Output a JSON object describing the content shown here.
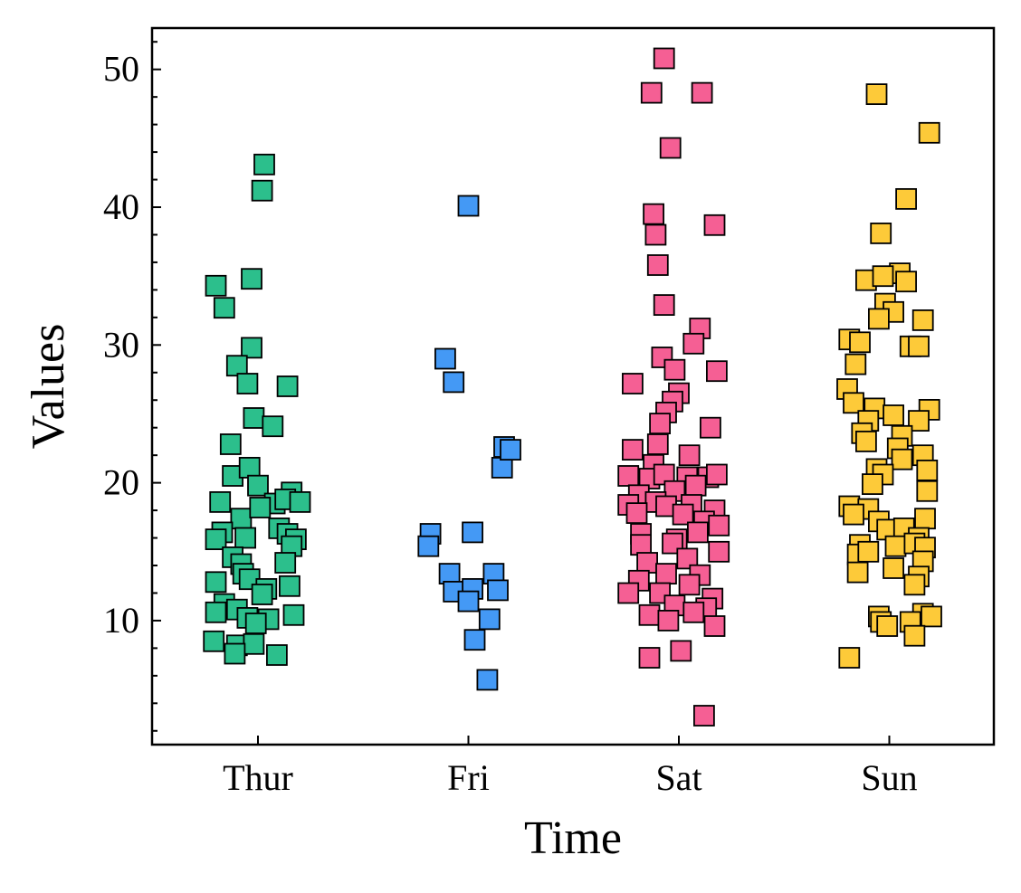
{
  "chart_data": {
    "type": "scatter",
    "xlabel": "Time",
    "ylabel": "Values",
    "categories": [
      "Thur",
      "Fri",
      "Sat",
      "Sun"
    ],
    "ylim": [
      1,
      53
    ],
    "yticks": [
      10,
      20,
      30,
      40,
      50
    ],
    "grid": false,
    "legend": "none",
    "marker": "square",
    "series": [
      {
        "category": "Thur",
        "color": "#2cbf8c",
        "points": [
          {
            "j": 0.03,
            "v": 43.1
          },
          {
            "j": 0.02,
            "v": 41.2
          },
          {
            "j": -0.2,
            "v": 34.3
          },
          {
            "j": -0.03,
            "v": 34.8
          },
          {
            "j": -0.16,
            "v": 32.7
          },
          {
            "j": -0.03,
            "v": 29.8
          },
          {
            "j": -0.1,
            "v": 28.5
          },
          {
            "j": -0.05,
            "v": 27.2
          },
          {
            "j": 0.14,
            "v": 27.0
          },
          {
            "j": -0.02,
            "v": 24.7
          },
          {
            "j": 0.07,
            "v": 24.1
          },
          {
            "j": -0.13,
            "v": 22.8
          },
          {
            "j": -0.12,
            "v": 20.5
          },
          {
            "j": -0.04,
            "v": 21.1
          },
          {
            "j": 0.0,
            "v": 19.8
          },
          {
            "j": 0.16,
            "v": 19.3
          },
          {
            "j": -0.18,
            "v": 18.6
          },
          {
            "j": 0.08,
            "v": 18.5
          },
          {
            "j": 0.13,
            "v": 18.8
          },
          {
            "j": 0.2,
            "v": 18.6
          },
          {
            "j": -0.08,
            "v": 17.4
          },
          {
            "j": 0.01,
            "v": 18.2
          },
          {
            "j": -0.17,
            "v": 16.4
          },
          {
            "j": 0.1,
            "v": 16.7
          },
          {
            "j": 0.14,
            "v": 16.3
          },
          {
            "j": 0.18,
            "v": 15.9
          },
          {
            "j": -0.2,
            "v": 15.9
          },
          {
            "j": -0.06,
            "v": 16.0
          },
          {
            "j": 0.16,
            "v": 15.4
          },
          {
            "j": -0.12,
            "v": 14.6
          },
          {
            "j": -0.08,
            "v": 14.1
          },
          {
            "j": 0.13,
            "v": 14.2
          },
          {
            "j": -0.2,
            "v": 12.8
          },
          {
            "j": -0.07,
            "v": 13.4
          },
          {
            "j": -0.04,
            "v": 13.0
          },
          {
            "j": 0.04,
            "v": 12.3
          },
          {
            "j": 0.15,
            "v": 12.5
          },
          {
            "j": -0.16,
            "v": 11.2
          },
          {
            "j": 0.02,
            "v": 11.9
          },
          {
            "j": -0.1,
            "v": 10.8
          },
          {
            "j": -0.2,
            "v": 10.6
          },
          {
            "j": -0.05,
            "v": 10.2
          },
          {
            "j": 0.05,
            "v": 10.1
          },
          {
            "j": 0.17,
            "v": 10.4
          },
          {
            "j": -0.01,
            "v": 9.8
          },
          {
            "j": -0.21,
            "v": 8.5
          },
          {
            "j": -0.1,
            "v": 8.2
          },
          {
            "j": -0.02,
            "v": 8.3
          },
          {
            "j": -0.11,
            "v": 7.6
          },
          {
            "j": 0.09,
            "v": 7.5
          }
        ]
      },
      {
        "category": "Fri",
        "color": "#4499f5",
        "points": [
          {
            "j": 0.0,
            "v": 40.1
          },
          {
            "j": -0.11,
            "v": 29.0
          },
          {
            "j": -0.07,
            "v": 27.3
          },
          {
            "j": 0.17,
            "v": 22.6
          },
          {
            "j": 0.16,
            "v": 21.1
          },
          {
            "j": 0.2,
            "v": 22.4
          },
          {
            "j": -0.18,
            "v": 16.3
          },
          {
            "j": -0.19,
            "v": 15.4
          },
          {
            "j": 0.02,
            "v": 16.4
          },
          {
            "j": -0.09,
            "v": 13.4
          },
          {
            "j": -0.07,
            "v": 12.1
          },
          {
            "j": 0.02,
            "v": 12.3
          },
          {
            "j": 0.12,
            "v": 13.4
          },
          {
            "j": 0.14,
            "v": 12.2
          },
          {
            "j": 0.0,
            "v": 11.4
          },
          {
            "j": 0.1,
            "v": 10.1
          },
          {
            "j": 0.03,
            "v": 8.6
          },
          {
            "j": 0.09,
            "v": 5.7
          }
        ]
      },
      {
        "category": "Sat",
        "color": "#f55f94",
        "points": [
          {
            "j": -0.07,
            "v": 50.8
          },
          {
            "j": -0.13,
            "v": 48.3
          },
          {
            "j": 0.11,
            "v": 48.3
          },
          {
            "j": -0.04,
            "v": 44.3
          },
          {
            "j": -0.12,
            "v": 39.5
          },
          {
            "j": -0.11,
            "v": 38.0
          },
          {
            "j": 0.17,
            "v": 38.7
          },
          {
            "j": -0.1,
            "v": 35.8
          },
          {
            "j": -0.07,
            "v": 32.9
          },
          {
            "j": 0.1,
            "v": 31.2
          },
          {
            "j": 0.07,
            "v": 30.1
          },
          {
            "j": -0.08,
            "v": 29.1
          },
          {
            "j": -0.02,
            "v": 28.2
          },
          {
            "j": 0.18,
            "v": 28.1
          },
          {
            "j": -0.22,
            "v": 27.2
          },
          {
            "j": 0.0,
            "v": 26.5
          },
          {
            "j": -0.03,
            "v": 25.9
          },
          {
            "j": -0.06,
            "v": 25.1
          },
          {
            "j": -0.09,
            "v": 24.3
          },
          {
            "j": 0.15,
            "v": 24.0
          },
          {
            "j": -0.1,
            "v": 22.8
          },
          {
            "j": -0.22,
            "v": 22.4
          },
          {
            "j": 0.05,
            "v": 22.0
          },
          {
            "j": -0.12,
            "v": 21.3
          },
          {
            "j": -0.24,
            "v": 20.5
          },
          {
            "j": -0.14,
            "v": 20.3
          },
          {
            "j": -0.07,
            "v": 20.6
          },
          {
            "j": 0.04,
            "v": 20.4
          },
          {
            "j": 0.14,
            "v": 20.4
          },
          {
            "j": 0.18,
            "v": 20.6
          },
          {
            "j": -0.19,
            "v": 19.1
          },
          {
            "j": -0.02,
            "v": 19.4
          },
          {
            "j": 0.08,
            "v": 19.8
          },
          {
            "j": -0.24,
            "v": 18.4
          },
          {
            "j": -0.11,
            "v": 18.6
          },
          {
            "j": -0.06,
            "v": 18.3
          },
          {
            "j": 0.06,
            "v": 18.4
          },
          {
            "j": 0.17,
            "v": 18.0
          },
          {
            "j": -0.2,
            "v": 17.8
          },
          {
            "j": 0.02,
            "v": 17.7
          },
          {
            "j": 0.12,
            "v": 17.2
          },
          {
            "j": 0.19,
            "v": 16.9
          },
          {
            "j": -0.18,
            "v": 16.3
          },
          {
            "j": -0.01,
            "v": 15.9
          },
          {
            "j": 0.09,
            "v": 16.4
          },
          {
            "j": -0.18,
            "v": 15.5
          },
          {
            "j": -0.03,
            "v": 15.6
          },
          {
            "j": 0.19,
            "v": 15.0
          },
          {
            "j": -0.15,
            "v": 14.2
          },
          {
            "j": 0.04,
            "v": 14.5
          },
          {
            "j": -0.06,
            "v": 13.4
          },
          {
            "j": 0.1,
            "v": 13.3
          },
          {
            "j": -0.19,
            "v": 12.9
          },
          {
            "j": 0.05,
            "v": 12.6
          },
          {
            "j": -0.24,
            "v": 12.0
          },
          {
            "j": -0.09,
            "v": 12.0
          },
          {
            "j": 0.16,
            "v": 11.6
          },
          {
            "j": -0.02,
            "v": 11.1
          },
          {
            "j": 0.13,
            "v": 10.9
          },
          {
            "j": -0.14,
            "v": 10.4
          },
          {
            "j": -0.05,
            "v": 10.0
          },
          {
            "j": 0.07,
            "v": 10.6
          },
          {
            "j": 0.17,
            "v": 9.6
          },
          {
            "j": -0.14,
            "v": 7.3
          },
          {
            "j": 0.01,
            "v": 7.8
          },
          {
            "j": 0.12,
            "v": 3.1
          }
        ]
      },
      {
        "category": "Sun",
        "color": "#fdca39",
        "points": [
          {
            "j": -0.06,
            "v": 48.2
          },
          {
            "j": 0.19,
            "v": 45.4
          },
          {
            "j": 0.08,
            "v": 40.6
          },
          {
            "j": -0.04,
            "v": 38.1
          },
          {
            "j": 0.05,
            "v": 35.2
          },
          {
            "j": -0.11,
            "v": 34.7
          },
          {
            "j": -0.03,
            "v": 35.0
          },
          {
            "j": 0.08,
            "v": 34.6
          },
          {
            "j": -0.02,
            "v": 33.0
          },
          {
            "j": 0.02,
            "v": 32.4
          },
          {
            "j": -0.05,
            "v": 31.9
          },
          {
            "j": 0.16,
            "v": 31.8
          },
          {
            "j": -0.19,
            "v": 30.4
          },
          {
            "j": -0.14,
            "v": 30.2
          },
          {
            "j": 0.1,
            "v": 29.9
          },
          {
            "j": 0.14,
            "v": 29.9
          },
          {
            "j": -0.16,
            "v": 28.6
          },
          {
            "j": -0.2,
            "v": 26.8
          },
          {
            "j": -0.17,
            "v": 25.8
          },
          {
            "j": -0.07,
            "v": 25.4
          },
          {
            "j": 0.19,
            "v": 25.3
          },
          {
            "j": -0.1,
            "v": 24.5
          },
          {
            "j": 0.02,
            "v": 24.9
          },
          {
            "j": 0.14,
            "v": 24.5
          },
          {
            "j": -0.13,
            "v": 23.6
          },
          {
            "j": 0.06,
            "v": 23.4
          },
          {
            "j": -0.11,
            "v": 23.0
          },
          {
            "j": 0.04,
            "v": 22.5
          },
          {
            "j": 0.16,
            "v": 22.0
          },
          {
            "j": 0.06,
            "v": 21.7
          },
          {
            "j": -0.06,
            "v": 21.0
          },
          {
            "j": -0.03,
            "v": 20.6
          },
          {
            "j": 0.18,
            "v": 20.9
          },
          {
            "j": -0.08,
            "v": 19.9
          },
          {
            "j": 0.18,
            "v": 19.4
          },
          {
            "j": -0.19,
            "v": 18.3
          },
          {
            "j": -0.1,
            "v": 18.1
          },
          {
            "j": -0.17,
            "v": 17.7
          },
          {
            "j": -0.05,
            "v": 17.2
          },
          {
            "j": 0.17,
            "v": 17.4
          },
          {
            "j": -0.01,
            "v": 16.6
          },
          {
            "j": 0.07,
            "v": 16.7
          },
          {
            "j": 0.14,
            "v": 16.0
          },
          {
            "j": -0.14,
            "v": 15.5
          },
          {
            "j": 0.03,
            "v": 15.4
          },
          {
            "j": 0.12,
            "v": 15.6
          },
          {
            "j": 0.17,
            "v": 15.3
          },
          {
            "j": -0.15,
            "v": 14.8
          },
          {
            "j": -0.1,
            "v": 15.0
          },
          {
            "j": 0.16,
            "v": 14.3
          },
          {
            "j": -0.15,
            "v": 13.5
          },
          {
            "j": 0.02,
            "v": 13.8
          },
          {
            "j": 0.14,
            "v": 13.2
          },
          {
            "j": 0.12,
            "v": 12.6
          },
          {
            "j": -0.05,
            "v": 10.3
          },
          {
            "j": 0.16,
            "v": 10.5
          },
          {
            "j": 0.2,
            "v": 10.3
          },
          {
            "j": -0.04,
            "v": 9.9
          },
          {
            "j": -0.01,
            "v": 9.6
          },
          {
            "j": 0.1,
            "v": 9.9
          },
          {
            "j": 0.12,
            "v": 8.9
          },
          {
            "j": -0.19,
            "v": 7.3
          }
        ]
      }
    ]
  }
}
